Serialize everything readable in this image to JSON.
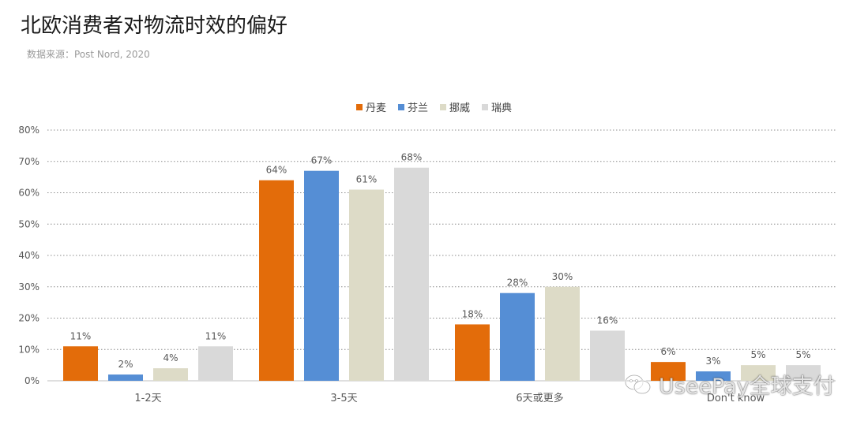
{
  "title": "北欧消费者对物流时效的偏好",
  "source": "数据来源：Post Nord, 2020",
  "watermark": {
    "text": "UseePay全球支付",
    "icon": "wechat-icon"
  },
  "chart_data": {
    "type": "bar",
    "categories": [
      "1-2天",
      "3-5天",
      "6天或更多",
      "Don't know"
    ],
    "series": [
      {
        "name": "丹麦",
        "color": "#E36C0A",
        "values": [
          11,
          64,
          18,
          6
        ]
      },
      {
        "name": "芬兰",
        "color": "#558ED5",
        "values": [
          2,
          67,
          28,
          3
        ]
      },
      {
        "name": "挪威",
        "color": "#DDDBC7",
        "values": [
          4,
          61,
          30,
          5
        ]
      },
      {
        "name": "瑞典",
        "color": "#D9D9D9",
        "values": [
          11,
          68,
          16,
          5
        ]
      }
    ],
    "value_suffix": "%",
    "ylim": [
      0,
      80
    ],
    "yticks": [
      "0%",
      "10%",
      "20%",
      "30%",
      "40%",
      "50%",
      "60%",
      "70%",
      "80%"
    ],
    "grid": true,
    "grid_style": "dotted",
    "legend_position": "top-center",
    "xlabel": "",
    "ylabel": ""
  }
}
